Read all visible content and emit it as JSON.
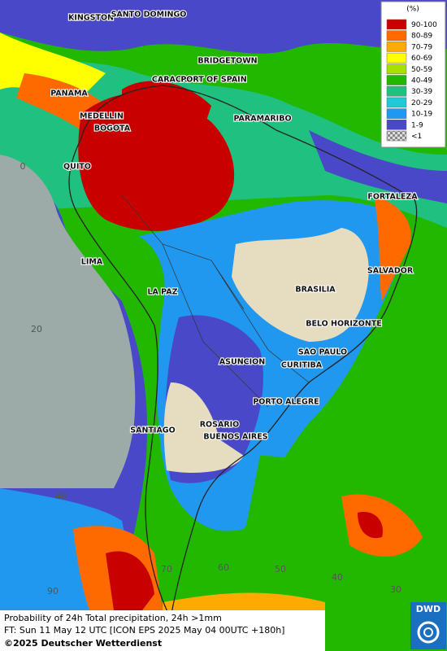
{
  "legend": {
    "title": "(%)",
    "items": [
      {
        "label": "90-100",
        "color": "#c80000"
      },
      {
        "label": "80-89",
        "color": "#ff6a00"
      },
      {
        "label": "70-79",
        "color": "#ffaa00"
      },
      {
        "label": "60-69",
        "color": "#ffff00"
      },
      {
        "label": "50-59",
        "color": "#a8e000"
      },
      {
        "label": "40-49",
        "color": "#22b800"
      },
      {
        "label": "30-39",
        "color": "#20c080"
      },
      {
        "label": "20-29",
        "color": "#20c8d8"
      },
      {
        "label": "10-19",
        "color": "#2098f0"
      },
      {
        "label": "1-9",
        "color": "#4848c8"
      },
      {
        "label": "<1",
        "color": "#b0b0b0"
      }
    ]
  },
  "cities": [
    "KINGSTON",
    "SANTO DOMINGO",
    "BRIDGETOWN",
    "CARACAS",
    "PORT OF SPAIN",
    "PANAMA",
    "MEDELLIN",
    "BOGOTA",
    "PARAMARIBO",
    "QUITO",
    "FORTALEZA",
    "LIMA",
    "SALVADOR",
    "LA PAZ",
    "BRASILIA",
    "BELO HORIZONTE",
    "SAO PAULO",
    "ASUNCION",
    "CURITIBA",
    "PORTO ALEGRE",
    "ROSARIO",
    "SANTIAGO",
    "BUENOS AIRES"
  ],
  "grid_labels": [
    "0",
    "20",
    "40",
    "90",
    "70",
    "60",
    "50",
    "40",
    "30"
  ],
  "footer": {
    "line1": "Probability of 24h Total precipitation, 24h >1mm",
    "line2": "FT: Sun 11 May 12 UTC [ICON EPS 2025 May 04 00UTC +180h]",
    "copyright": "©2025 Deutscher Wetterdienst",
    "logo": "DWD"
  }
}
